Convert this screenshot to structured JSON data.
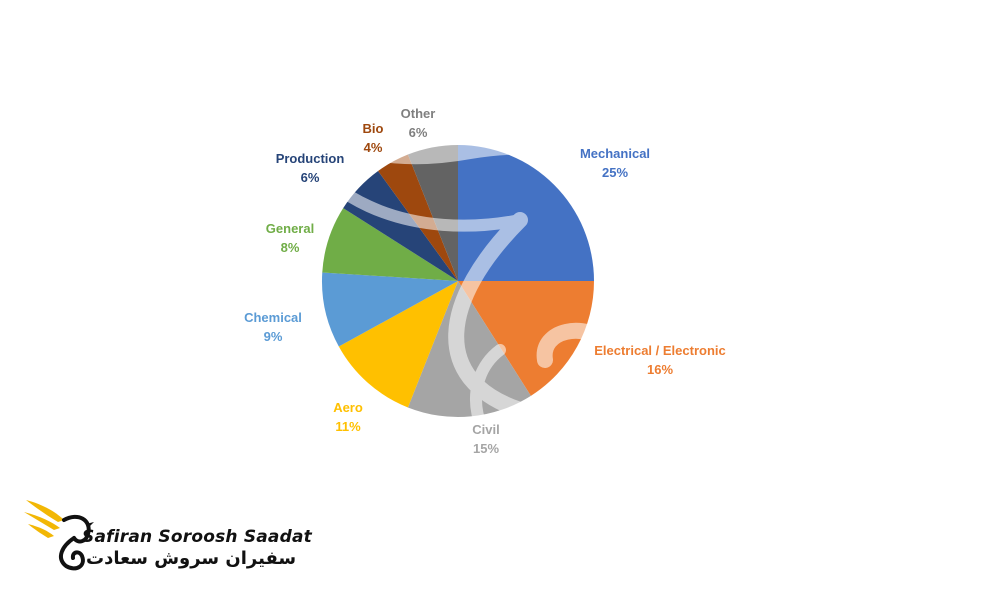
{
  "chart_data": {
    "type": "pie",
    "categories": [
      "Mechanical",
      "Electrical / Electronic",
      "Civil",
      "Aero",
      "Chemical",
      "General",
      "Production",
      "Bio",
      "Other"
    ],
    "values": [
      25,
      16,
      15,
      11,
      9,
      8,
      6,
      4,
      6
    ],
    "percent_labels": [
      "25%",
      "16%",
      "15%",
      "11%",
      "9%",
      "8%",
      "6%",
      "4%",
      "6%"
    ],
    "colors": [
      "#4472C4",
      "#ED7D31",
      "#A5A5A5",
      "#FFC000",
      "#5B9BD5",
      "#70AD47",
      "#264478",
      "#9E480E",
      "#636363"
    ],
    "label_colors": [
      "#4472C4",
      "#ED7D31",
      "#A5A5A5",
      "#FFC000",
      "#5B9BD5",
      "#70AD47",
      "#264478",
      "#9E480E",
      "#7F7F7F"
    ],
    "start_angle": "12 o'clock",
    "direction": "clockwise",
    "legend": "none",
    "data_labels": "outside"
  },
  "logo": {
    "latin": "Safiran Soroosh Saadat",
    "persian": "سفیران سروش سعادت",
    "wing_color": "#F2B705",
    "ink_color": "#111111"
  }
}
